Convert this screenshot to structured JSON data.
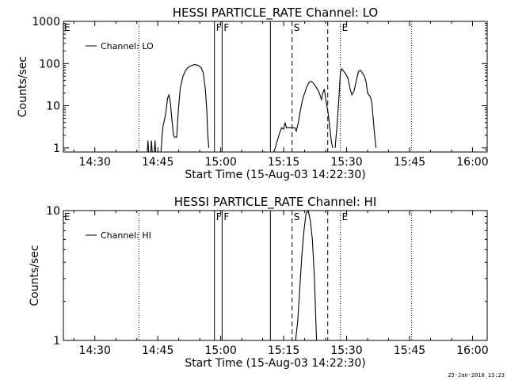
{
  "footer_date": "25-Jan-2010 13:23",
  "chart_data": [
    {
      "type": "line",
      "title": "HESSI PARTICLE_RATE Channel: LO",
      "xlabel": "Start Time (15-Aug-03 14:22:30)",
      "ylabel": "Counts/sec",
      "yscale": "log",
      "ylim": [
        0.8,
        1000
      ],
      "xlim": [
        "14:22:30",
        "16:03:30"
      ],
      "x_ticks": [
        "14:30",
        "14:45",
        "15:00",
        "15:15",
        "15:30",
        "15:45",
        "16:00"
      ],
      "y_ticks": [
        "1",
        "10",
        "100",
        "1000"
      ],
      "legend": {
        "position": "top-left",
        "entries": [
          "Channel: LO"
        ]
      },
      "series": [
        {
          "name": "Channel: LO",
          "segments": [
            [
              [
                "14:42:30",
                0.8
              ],
              [
                "14:42:40",
                1.5
              ],
              [
                "14:42:50",
                0.8
              ],
              [
                "14:43:20",
                0.8
              ],
              [
                "14:43:30",
                1.5
              ],
              [
                "14:43:40",
                0.8
              ],
              [
                "14:44:10",
                0.8
              ],
              [
                "14:44:20",
                1.5
              ],
              [
                "14:44:30",
                0.8
              ]
            ],
            [
              [
                "14:45:45",
                0.8
              ],
              [
                "14:46:10",
                3
              ],
              [
                "14:46:50",
                6
              ],
              [
                "14:47:20",
                15
              ],
              [
                "14:47:40",
                18
              ],
              [
                "14:48:00",
                12
              ],
              [
                "14:48:20",
                5
              ],
              [
                "14:48:45",
                2
              ],
              [
                "14:49:00",
                1.8
              ],
              [
                "14:49:30",
                1.8
              ],
              [
                "14:49:55",
                8
              ],
              [
                "14:50:20",
                25
              ],
              [
                "14:51:00",
                50
              ],
              [
                "14:51:40",
                70
              ],
              [
                "14:52:10",
                80
              ],
              [
                "14:53:00",
                90
              ],
              [
                "14:53:50",
                95
              ],
              [
                "14:54:40",
                90
              ],
              [
                "14:55:20",
                80
              ],
              [
                "14:55:50",
                60
              ],
              [
                "14:56:20",
                25
              ],
              [
                "14:56:40",
                8
              ],
              [
                "14:56:55",
                2
              ],
              [
                "14:57:10",
                1
              ]
            ],
            [
              [
                "15:12:40",
                0.8
              ],
              [
                "15:13:00",
                1
              ],
              [
                "15:13:30",
                1.5
              ],
              [
                "15:14:00",
                2.2
              ],
              [
                "15:14:30",
                3
              ],
              [
                "15:15:00",
                2.8
              ],
              [
                "15:15:20",
                4
              ],
              [
                "15:15:40",
                3
              ],
              [
                "15:16:10",
                3
              ],
              [
                "15:17:00",
                3
              ],
              [
                "15:17:40",
                3
              ],
              [
                "15:18:00",
                2.5
              ],
              [
                "15:18:30",
                4
              ],
              [
                "15:19:00",
                8
              ],
              [
                "15:19:30",
                14
              ],
              [
                "15:20:00",
                20
              ],
              [
                "15:20:30",
                28
              ],
              [
                "15:21:00",
                35
              ],
              [
                "15:21:30",
                38
              ],
              [
                "15:22:00",
                35
              ],
              [
                "15:22:30",
                30
              ],
              [
                "15:23:00",
                25
              ],
              [
                "15:23:30",
                20
              ],
              [
                "15:24:00",
                14
              ],
              [
                "15:24:20",
                20
              ],
              [
                "15:24:40",
                25
              ],
              [
                "15:25:10",
                12
              ],
              [
                "15:25:40",
                6
              ],
              [
                "15:26:00",
                3
              ],
              [
                "15:26:20",
                1.5
              ],
              [
                "15:26:40",
                1
              ]
            ],
            [
              [
                "15:27:15",
                1
              ],
              [
                "15:27:40",
                3
              ],
              [
                "15:28:10",
                15
              ],
              [
                "15:28:30",
                60
              ],
              [
                "15:28:50",
                75
              ],
              [
                "15:29:20",
                65
              ],
              [
                "15:29:50",
                55
              ],
              [
                "15:30:20",
                45
              ],
              [
                "15:30:50",
                25
              ],
              [
                "15:31:15",
                18
              ],
              [
                "15:31:45",
                22
              ],
              [
                "15:32:20",
                40
              ],
              [
                "15:32:50",
                65
              ],
              [
                "15:33:15",
                70
              ],
              [
                "15:33:45",
                60
              ],
              [
                "15:34:15",
                50
              ],
              [
                "15:34:40",
                35
              ],
              [
                "15:35:00",
                20
              ],
              [
                "15:35:20",
                18
              ],
              [
                "15:35:40",
                16
              ],
              [
                "15:36:00",
                12
              ],
              [
                "15:36:20",
                5
              ],
              [
                "15:36:40",
                2
              ],
              [
                "15:37:00",
                1
              ]
            ]
          ]
        }
      ],
      "markers": [
        {
          "time": "14:40:30",
          "style": "dotted",
          "label": ""
        },
        {
          "time": "14:58:30",
          "style": "solid",
          "label": "F"
        },
        {
          "time": "15:00:20",
          "style": "solid",
          "label": "F"
        },
        {
          "time": "15:11:50",
          "style": "solid",
          "label": ""
        },
        {
          "time": "15:17:00",
          "style": "dashed",
          "label": "S"
        },
        {
          "time": "15:25:30",
          "style": "dashed",
          "label": ""
        },
        {
          "time": "15:28:30",
          "style": "dotted",
          "label": "E"
        },
        {
          "time": "15:45:30",
          "style": "dotted",
          "label": ""
        }
      ],
      "left_label": "E"
    },
    {
      "type": "line",
      "title": "HESSI PARTICLE_RATE Channel: HI",
      "xlabel": "Start Time (15-Aug-03 14:22:30)",
      "ylabel": "Counts/sec",
      "yscale": "log",
      "ylim": [
        1,
        10
      ],
      "xlim": [
        "14:22:30",
        "16:03:30"
      ],
      "x_ticks": [
        "14:30",
        "14:45",
        "15:00",
        "15:15",
        "15:30",
        "15:45",
        "16:00"
      ],
      "y_ticks": [
        "1",
        "10"
      ],
      "legend": {
        "position": "top-left",
        "entries": [
          "Channel: HI"
        ]
      },
      "series": [
        {
          "name": "Channel: HI",
          "segments": [
            [
              [
                "15:17:50",
                1
              ],
              [
                "15:18:20",
                1.4
              ],
              [
                "15:18:50",
                2.5
              ],
              [
                "15:19:20",
                4.5
              ],
              [
                "15:19:50",
                7
              ],
              [
                "15:20:20",
                9.5
              ],
              [
                "15:20:50",
                10
              ],
              [
                "15:21:20",
                8.5
              ],
              [
                "15:21:50",
                6
              ],
              [
                "15:22:20",
                3
              ],
              [
                "15:22:50",
                1
              ]
            ]
          ]
        }
      ],
      "markers": [
        {
          "time": "14:40:30",
          "style": "dotted",
          "label": ""
        },
        {
          "time": "14:58:30",
          "style": "solid",
          "label": "F"
        },
        {
          "time": "15:00:20",
          "style": "solid",
          "label": "F"
        },
        {
          "time": "15:11:50",
          "style": "solid",
          "label": ""
        },
        {
          "time": "15:17:00",
          "style": "dashed",
          "label": "S"
        },
        {
          "time": "15:25:30",
          "style": "dashed",
          "label": ""
        },
        {
          "time": "15:28:30",
          "style": "dotted",
          "label": "E"
        },
        {
          "time": "15:45:30",
          "style": "dotted",
          "label": ""
        }
      ],
      "left_label": "E"
    }
  ]
}
